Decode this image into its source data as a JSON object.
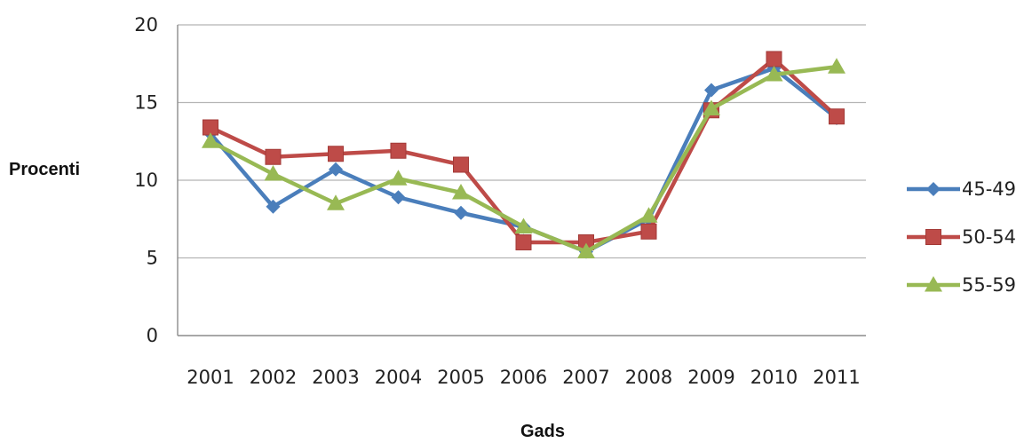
{
  "chart_data": {
    "type": "line",
    "title": "",
    "xlabel": "Gads",
    "ylabel": "Procenti",
    "x": [
      "2001",
      "2002",
      "2003",
      "2004",
      "2005",
      "2006",
      "2007",
      "2008",
      "2009",
      "2010",
      "2011"
    ],
    "ylim": [
      0,
      20
    ],
    "yticks": [
      0,
      5,
      10,
      15,
      20
    ],
    "grid": true,
    "legend_position": "right",
    "series": [
      {
        "name": "45-49",
        "color": "#4a7ebb",
        "marker": "diamond",
        "values": [
          13.0,
          8.3,
          10.7,
          8.9,
          7.9,
          7.0,
          5.4,
          7.5,
          15.8,
          17.2,
          14.0
        ]
      },
      {
        "name": "50-54",
        "color": "#be4b48",
        "marker": "square",
        "values": [
          13.4,
          11.5,
          11.7,
          11.9,
          11.0,
          6.0,
          6.0,
          6.7,
          14.5,
          17.8,
          14.1
        ]
      },
      {
        "name": "55-59",
        "color": "#98b954",
        "marker": "triangle",
        "values": [
          12.5,
          10.4,
          8.5,
          10.1,
          9.2,
          7.0,
          5.4,
          7.7,
          14.6,
          16.8,
          17.3
        ]
      }
    ]
  }
}
